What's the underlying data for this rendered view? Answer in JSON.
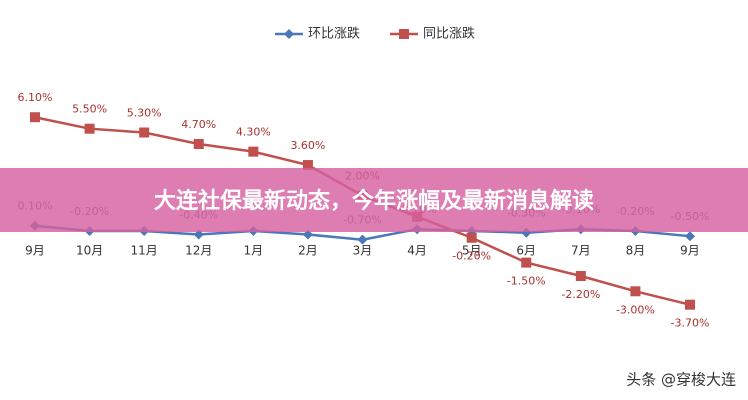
{
  "chart_data": {
    "type": "line",
    "categories": [
      "9月",
      "10月",
      "11月",
      "12月",
      "1月",
      "2月",
      "3月",
      "4月",
      "5月",
      "6月",
      "7月",
      "8月",
      "9月"
    ],
    "series": [
      {
        "name": "环比涨跌",
        "color": "#4a78b8",
        "axis": "y2",
        "marker": "diamond",
        "values": [
          0.1,
          -0.2,
          -0.2,
          -0.4,
          -0.2,
          -0.4,
          -0.7,
          -0.1,
          -0.2,
          -0.3,
          -0.1,
          -0.2,
          -0.5
        ],
        "value_labels": [
          "0.10%",
          "-0.20%",
          null,
          "-0.40%",
          null,
          null,
          "-0.70%",
          "-0.10%",
          null,
          "-0.30%",
          "-0.10%",
          "-0.20%",
          "-0.50%"
        ]
      },
      {
        "name": "同比涨跌",
        "color": "#c0504d",
        "marker": "square",
        "values": [
          6.1,
          5.5,
          5.3,
          4.7,
          4.3,
          3.6,
          2.0,
          0.9,
          -0.2,
          -1.5,
          -2.2,
          -3.0,
          -3.7
        ],
        "value_labels": [
          "6.10%",
          "5.50%",
          "5.30%",
          "4.70%",
          "4.30%",
          "3.60%",
          "2.00%",
          null,
          "-0.20%",
          "-1.50%",
          "-2.20%",
          "-3.00%",
          "-3.70%"
        ]
      }
    ],
    "ylim": [
      -4.5,
      7
    ],
    "y2lim": [
      -5.3,
      7.3
    ],
    "legend": "top"
  },
  "banner": "大连社保最新动态，今年涨幅及最新消息解读",
  "watermark": "头条 @穿梭大连"
}
